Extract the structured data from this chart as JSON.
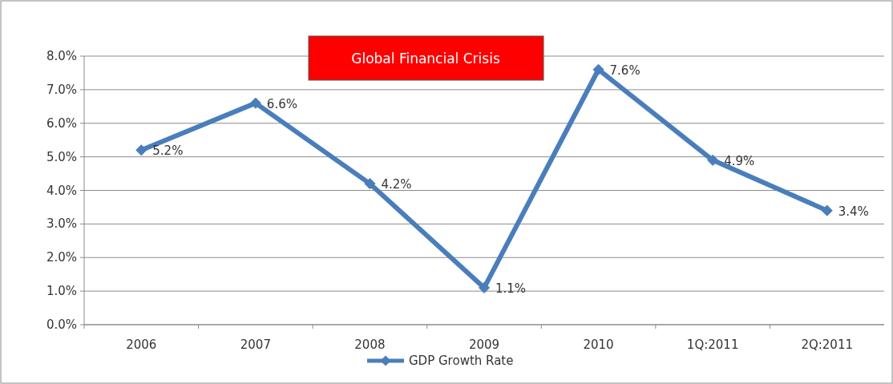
{
  "chart_data": {
    "type": "line",
    "categories": [
      "2006",
      "2007",
      "2008",
      "2009",
      "2010",
      "1Q:2011",
      "2Q:2011"
    ],
    "series": [
      {
        "name": "GDP Growth Rate",
        "color": "#4a7ebb",
        "values": [
          5.2,
          6.6,
          4.2,
          1.1,
          7.6,
          4.9,
          3.4
        ],
        "value_labels": [
          "5.2%",
          "6.6%",
          "4.2%",
          "1.1%",
          "7.6%",
          "4.9%",
          "3.4%"
        ]
      }
    ],
    "ylim": [
      0,
      8
    ],
    "yticks": [
      {
        "value": 0,
        "label": "0.0%"
      },
      {
        "value": 1,
        "label": "1.0%"
      },
      {
        "value": 2,
        "label": "2.0%"
      },
      {
        "value": 3,
        "label": "3.0%"
      },
      {
        "value": 4,
        "label": "4.0%"
      },
      {
        "value": 5,
        "label": "5.0%"
      },
      {
        "value": 6,
        "label": "6.0%"
      },
      {
        "value": 7,
        "label": "7.0%"
      },
      {
        "value": 8,
        "label": "8.0%"
      }
    ],
    "grid": "y",
    "legend": "bottom",
    "marker": "diamond",
    "line_style": "solid",
    "annotations": [
      "Global Financial Crisis"
    ]
  }
}
